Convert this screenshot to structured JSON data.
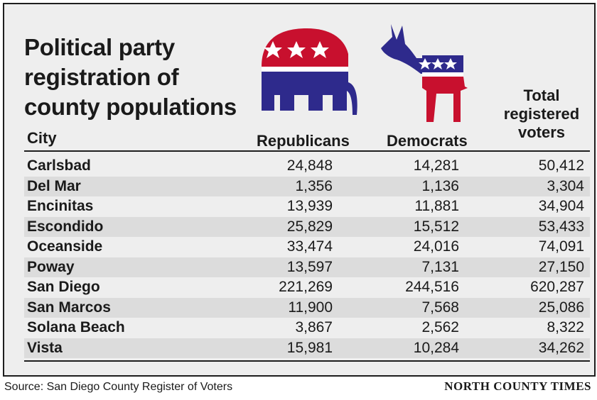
{
  "title": "Political party\nregistration of\ncounty populations",
  "headers": {
    "city": "City",
    "republicans": "Republicans",
    "democrats": "Democrats",
    "total": "Total\nregistered\nvoters"
  },
  "rows": [
    {
      "city": "Carlsbad",
      "republicans": "24,848",
      "democrats": "14,281",
      "total": "50,412"
    },
    {
      "city": "Del Mar",
      "republicans": "1,356",
      "democrats": "1,136",
      "total": "3,304"
    },
    {
      "city": "Encinitas",
      "republicans": "13,939",
      "democrats": "11,881",
      "total": "34,904"
    },
    {
      "city": "Escondido",
      "republicans": "25,829",
      "democrats": "15,512",
      "total": "53,433"
    },
    {
      "city": "Oceanside",
      "republicans": "33,474",
      "democrats": "24,016",
      "total": "74,091"
    },
    {
      "city": "Poway",
      "republicans": "13,597",
      "democrats": "7,131",
      "total": "27,150"
    },
    {
      "city": "San Diego",
      "republicans": "221,269",
      "democrats": "244,516",
      "total": "620,287"
    },
    {
      "city": "San Marcos",
      "republicans": "11,900",
      "democrats": "7,568",
      "total": "25,086"
    },
    {
      "city": "Solana Beach",
      "republicans": "3,867",
      "democrats": "2,562",
      "total": "8,322"
    },
    {
      "city": "Vista",
      "republicans": "15,981",
      "democrats": "10,284",
      "total": "34,262"
    }
  ],
  "source": "Source: San Diego County Register of Voters",
  "credit": "NORTH COUNTY TIMES",
  "icons": {
    "republican": "elephant-icon",
    "democrat": "donkey-icon"
  },
  "colors": {
    "red": "#c8102e",
    "blue": "#2e2a8c",
    "background": "#eeeeee",
    "stripe": "#dcdcdc"
  }
}
